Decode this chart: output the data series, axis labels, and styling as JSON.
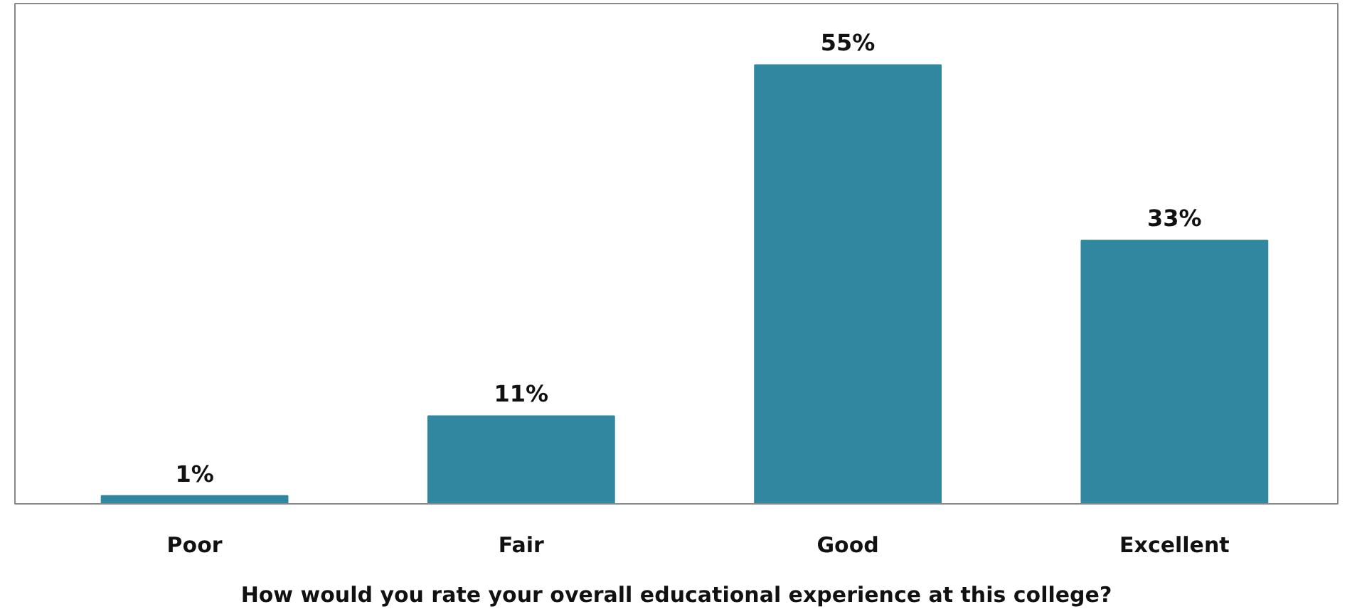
{
  "chart_data": {
    "type": "bar",
    "xlabel": "How would you rate your overall educational experience at this college?",
    "categories": [
      "Poor",
      "Fair",
      "Good",
      "Excellent"
    ],
    "values": [
      1,
      11,
      55,
      33
    ],
    "value_labels": [
      "1%",
      "11%",
      "55%",
      "33%"
    ],
    "color": "#31879f"
  }
}
